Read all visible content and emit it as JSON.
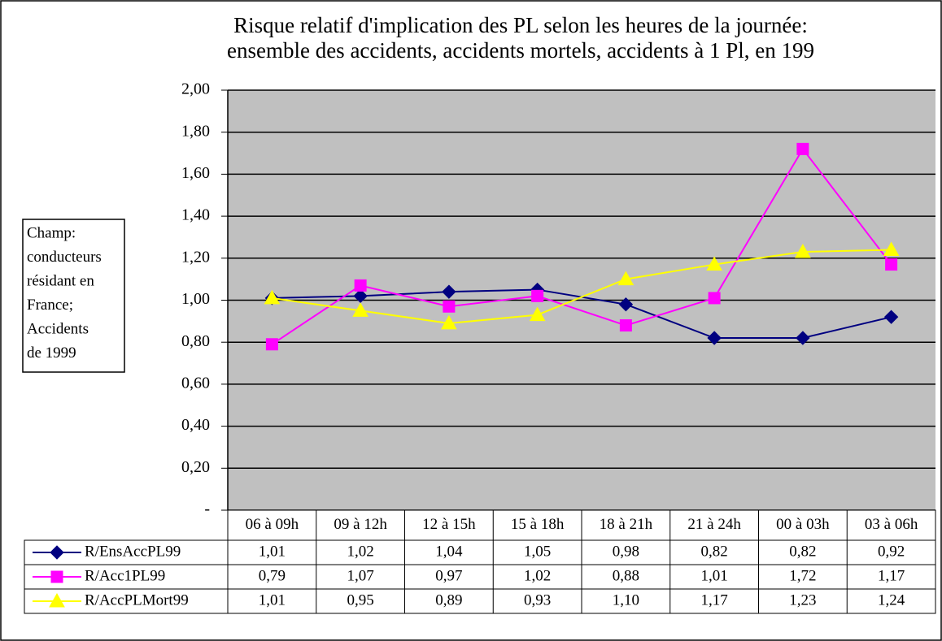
{
  "chart_data": {
    "type": "line",
    "title": "Risque relatif d'implication des PL selon les heures de la journée:",
    "subtitle": "ensemble des accidents, accidents mortels, accidents à 1 Pl, en 199",
    "annotation": [
      "Champ:",
      "conducteurs",
      "résidant en",
      "France;",
      "Accidents",
      "de 1999"
    ],
    "categories": [
      "06 à 09h",
      "09 à 12h",
      "12 à 15h",
      "15 à 18h",
      "18 à 21h",
      "21 à 24h",
      "00 à 03h",
      "03 à 06h"
    ],
    "series": [
      {
        "name": "R/EnsAccPL99",
        "color": "#000080",
        "marker": "diamond",
        "values": [
          1.01,
          1.02,
          1.04,
          1.05,
          0.98,
          0.82,
          0.82,
          0.92
        ],
        "value_labels": [
          "1,01",
          "1,02",
          "1,04",
          "1,05",
          "0,98",
          "0,82",
          "0,82",
          "0,92"
        ]
      },
      {
        "name": "R/Acc1PL99",
        "color": "#ff00ff",
        "marker": "square",
        "values": [
          0.79,
          1.07,
          0.97,
          1.02,
          0.88,
          1.01,
          1.72,
          1.17
        ],
        "value_labels": [
          "0,79",
          "1,07",
          "0,97",
          "1,02",
          "0,88",
          "1,01",
          "1,72",
          "1,17"
        ]
      },
      {
        "name": "R/AccPLMort99",
        "color": "#ffff00",
        "marker": "triangle",
        "values": [
          1.01,
          0.95,
          0.89,
          0.93,
          1.1,
          1.17,
          1.23,
          1.24
        ],
        "value_labels": [
          "1,01",
          "0,95",
          "0,89",
          "0,93",
          "1,10",
          "1,17",
          "1,23",
          "1,24"
        ]
      }
    ],
    "ylim": [
      0,
      2
    ],
    "yticks": [
      {
        "value": 0,
        "label": "-"
      },
      {
        "value": 0.2,
        "label": "0,20"
      },
      {
        "value": 0.4,
        "label": "0,40"
      },
      {
        "value": 0.6,
        "label": "0,60"
      },
      {
        "value": 0.8,
        "label": "0,80"
      },
      {
        "value": 1,
        "label": "1,00"
      },
      {
        "value": 1.2,
        "label": "1,20"
      },
      {
        "value": 1.4,
        "label": "1,40"
      },
      {
        "value": 1.6,
        "label": "1,60"
      },
      {
        "value": 1.8,
        "label": "1,80"
      },
      {
        "value": 2,
        "label": "2,00"
      }
    ],
    "grid": true,
    "plot_background": "#c0c0c0"
  }
}
